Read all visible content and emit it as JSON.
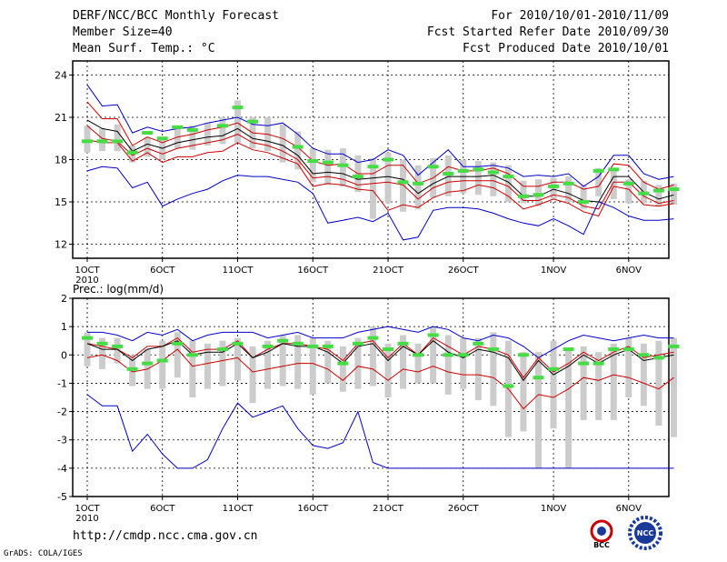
{
  "header": {
    "title": "DERF/NCC/BCC Monthly Forecast",
    "member_size": "Member Size=40",
    "variable": "Mean Surf. Temp.: °C",
    "period": "For 2010/10/01-2010/11/09",
    "started": "Fcst Started Refer Date 2010/09/30",
    "produced": "Fcst Produced Date 2010/10/01"
  },
  "footer": {
    "url": "http://cmdp.ncc.cma.gov.cn",
    "credit": "GrADS: COLA/IGES",
    "logo_bcc": "BCC",
    "logo_ncc": "NCC"
  },
  "colors": {
    "max": "#0000cc",
    "pct": "#cc0000",
    "mean": "#000000",
    "ctrl": "#44dd44",
    "range": "#cccccc"
  },
  "chart_data": [
    {
      "type": "line",
      "title": "Mean Surf. Temp.: °C",
      "x_tick_labels": [
        "1OCT",
        "6OCT",
        "11OCT",
        "16OCT",
        "21OCT",
        "26OCT",
        "1NOV",
        "6NOV"
      ],
      "x_year_label": "2010",
      "x_tick_days": [
        1,
        6,
        11,
        16,
        21,
        26,
        32,
        37
      ],
      "ylim": [
        11,
        25
      ],
      "yticks": [
        12,
        15,
        18,
        21,
        24
      ],
      "days": [
        1,
        2,
        3,
        4,
        5,
        6,
        7,
        8,
        9,
        10,
        11,
        12,
        13,
        14,
        15,
        16,
        17,
        18,
        19,
        20,
        21,
        22,
        23,
        24,
        25,
        26,
        27,
        28,
        29,
        30,
        31,
        32,
        33,
        34,
        35,
        36,
        37,
        38,
        39,
        40
      ],
      "series": [
        {
          "name": "max",
          "values": [
            23.3,
            21.8,
            21.9,
            19.9,
            20.3,
            20.0,
            20.2,
            20.3,
            20.6,
            20.8,
            21.0,
            20.5,
            20.4,
            20.6,
            19.8,
            18.8,
            18.4,
            18.4,
            17.8,
            18.0,
            18.7,
            18.3,
            16.9,
            17.8,
            18.7,
            17.5,
            17.5,
            17.6,
            17.4,
            16.8,
            16.9,
            16.8,
            17.0,
            16.1,
            16.8,
            18.3,
            18.3,
            17.0,
            16.6,
            16.8
          ]
        },
        {
          "name": "p_upper",
          "values": [
            22.1,
            20.9,
            20.9,
            19.0,
            19.6,
            19.2,
            19.6,
            19.8,
            20.1,
            20.3,
            20.6,
            19.9,
            19.8,
            19.5,
            18.9,
            17.9,
            17.6,
            17.7,
            17.0,
            17.0,
            17.6,
            17.6,
            16.3,
            16.7,
            17.5,
            17.2,
            17.2,
            17.4,
            17.0,
            16.1,
            16.1,
            16.4,
            16.4,
            15.9,
            16.1,
            17.7,
            17.6,
            16.4,
            15.9,
            16.2
          ]
        },
        {
          "name": "mean",
          "values": [
            20.8,
            20.2,
            20.0,
            18.6,
            19.1,
            18.8,
            19.2,
            19.4,
            19.6,
            19.7,
            20.2,
            19.5,
            19.3,
            19.0,
            18.3,
            17.0,
            17.1,
            17.0,
            16.6,
            16.7,
            16.8,
            16.6,
            15.6,
            16.3,
            16.8,
            16.8,
            16.8,
            16.9,
            16.4,
            15.4,
            15.4,
            15.9,
            15.6,
            15.1,
            15.0,
            16.8,
            16.8,
            15.7,
            15.2,
            15.5
          ]
        },
        {
          "name": "p_lower",
          "values": [
            20.4,
            19.5,
            19.3,
            18.3,
            18.8,
            18.4,
            18.8,
            19.0,
            19.2,
            19.4,
            19.8,
            19.2,
            19.0,
            18.6,
            18.0,
            16.7,
            16.8,
            16.6,
            16.2,
            16.3,
            16.4,
            16.2,
            15.2,
            16.0,
            16.4,
            16.5,
            16.5,
            16.5,
            16.1,
            15.1,
            15.1,
            15.5,
            15.3,
            14.7,
            14.5,
            16.4,
            16.4,
            15.4,
            14.9,
            15.1
          ]
        },
        {
          "name": "p_lowest",
          "values": [
            19.4,
            19.2,
            19.2,
            17.9,
            18.5,
            17.8,
            18.2,
            18.2,
            18.5,
            18.6,
            19.2,
            18.7,
            18.5,
            18.1,
            17.7,
            16.1,
            16.3,
            16.2,
            15.9,
            15.8,
            14.4,
            14.8,
            14.6,
            15.3,
            15.7,
            15.8,
            16.2,
            16.0,
            15.4,
            14.5,
            14.8,
            15.2,
            14.9,
            14.3,
            14.0,
            16.1,
            15.9,
            14.8,
            14.7,
            14.9
          ]
        },
        {
          "name": "min",
          "values": [
            17.2,
            17.5,
            17.4,
            16.0,
            16.4,
            14.7,
            15.2,
            15.6,
            15.9,
            16.5,
            16.9,
            16.8,
            16.8,
            16.6,
            16.4,
            15.6,
            13.5,
            13.7,
            13.9,
            13.6,
            14.2,
            12.3,
            12.5,
            14.4,
            14.6,
            14.6,
            14.5,
            14.2,
            13.8,
            13.5,
            13.3,
            13.8,
            13.3,
            12.7,
            15.0,
            14.6,
            14.0,
            13.7,
            13.7,
            13.8
          ]
        }
      ],
      "control": [
        19.3,
        19.3,
        19.3,
        18.5,
        19.9,
        19.5,
        20.3,
        20.1,
        null,
        20.4,
        21.7,
        20.7,
        null,
        null,
        18.9,
        17.9,
        17.8,
        17.6,
        16.8,
        17.5,
        18.0,
        16.4,
        16.3,
        17.5,
        17.0,
        17.2,
        17.3,
        17.1,
        16.8,
        15.4,
        15.5,
        16.1,
        16.3,
        15.0,
        17.2,
        17.3,
        16.3,
        15.6,
        15.8,
        15.9
      ],
      "range_bars": [
        [
          18.5,
          20.4
        ],
        [
          18.6,
          20.2
        ],
        [
          18.6,
          20.5
        ],
        [
          17.8,
          19.0
        ],
        [
          18.2,
          19.6
        ],
        [
          18.0,
          19.4
        ],
        [
          18.8,
          20.3
        ],
        [
          18.7,
          20.4
        ],
        [
          19.0,
          20.6
        ],
        [
          19.1,
          21.0
        ],
        [
          19.2,
          22.2
        ],
        [
          18.8,
          21.0
        ],
        [
          18.6,
          21.0
        ],
        [
          17.8,
          20.5
        ],
        [
          17.3,
          20.0
        ],
        [
          16.4,
          18.8
        ],
        [
          16.2,
          18.7
        ],
        [
          16.1,
          18.8
        ],
        [
          15.7,
          18.3
        ],
        [
          13.8,
          18.1
        ],
        [
          14.9,
          18.5
        ],
        [
          14.3,
          18.0
        ],
        [
          14.5,
          17.6
        ],
        [
          15.3,
          18.1
        ],
        [
          15.4,
          18.3
        ],
        [
          15.6,
          18.0
        ],
        [
          15.5,
          17.9
        ],
        [
          15.4,
          17.8
        ],
        [
          15.0,
          17.6
        ],
        [
          14.9,
          16.5
        ],
        [
          14.7,
          16.6
        ],
        [
          15.2,
          16.7
        ],
        [
          15.0,
          16.8
        ],
        [
          14.5,
          16.2
        ],
        [
          15.4,
          17.4
        ],
        [
          15.2,
          17.2
        ],
        [
          14.9,
          16.6
        ],
        [
          14.9,
          16.5
        ],
        [
          14.7,
          16.2
        ],
        [
          14.8,
          16.3
        ]
      ]
    },
    {
      "type": "line",
      "title": "Prec.: log(mm/d)",
      "x_tick_labels": [
        "1OCT",
        "6OCT",
        "11OCT",
        "16OCT",
        "21OCT",
        "26OCT",
        "1NOV",
        "6NOV"
      ],
      "x_year_label": "2010",
      "x_tick_days": [
        1,
        6,
        11,
        16,
        21,
        26,
        32,
        37
      ],
      "ylim": [
        -5,
        2
      ],
      "yticks": [
        -5,
        -4,
        -3,
        -2,
        -1,
        0,
        1,
        2
      ],
      "days": [
        1,
        2,
        3,
        4,
        5,
        6,
        7,
        8,
        9,
        10,
        11,
        12,
        13,
        14,
        15,
        16,
        17,
        18,
        19,
        20,
        21,
        22,
        23,
        24,
        25,
        26,
        27,
        28,
        29,
        30,
        31,
        32,
        33,
        34,
        35,
        36,
        37,
        38,
        39,
        40
      ],
      "series": [
        {
          "name": "max",
          "values": [
            0.8,
            0.8,
            0.7,
            0.5,
            0.8,
            0.7,
            0.9,
            0.5,
            0.7,
            0.8,
            0.8,
            0.8,
            0.6,
            0.7,
            0.8,
            0.6,
            0.6,
            0.6,
            0.8,
            0.9,
            1.0,
            0.9,
            0.8,
            1.0,
            0.9,
            0.6,
            0.5,
            0.7,
            0.6,
            0.3,
            -0.1,
            0.2,
            0.5,
            0.7,
            0.6,
            0.5,
            0.6,
            0.7,
            0.6,
            0.6
          ]
        },
        {
          "name": "p_upper",
          "values": [
            0.4,
            0.3,
            0.2,
            -0.1,
            0.3,
            0.3,
            0.6,
            0.1,
            0.2,
            0.2,
            0.5,
            -0.1,
            0.2,
            0.4,
            0.4,
            0.3,
            0.2,
            -0.2,
            0.4,
            0.5,
            -0.1,
            0.4,
            0.0,
            0.6,
            0.3,
            0.0,
            0.3,
            0.2,
            0.0,
            -0.8,
            -0.1,
            -0.6,
            -0.3,
            0.1,
            -0.2,
            0.1,
            0.3,
            -0.1,
            0.0,
            0.1
          ]
        },
        {
          "name": "mean",
          "values": [
            0.4,
            0.2,
            0.2,
            -0.2,
            0.2,
            0.3,
            0.5,
            0.0,
            0.1,
            0.1,
            0.4,
            -0.1,
            0.1,
            0.4,
            0.3,
            0.3,
            0.1,
            -0.3,
            0.3,
            0.4,
            -0.2,
            0.3,
            0.0,
            0.5,
            0.1,
            -0.1,
            0.2,
            0.1,
            -0.1,
            -0.9,
            -0.2,
            -0.7,
            -0.4,
            0.0,
            -0.3,
            0.0,
            0.2,
            -0.2,
            -0.1,
            0.0
          ]
        },
        {
          "name": "p_lowest",
          "values": [
            -0.1,
            0.0,
            -0.2,
            -0.6,
            -0.5,
            -0.2,
            0.2,
            -0.4,
            -0.3,
            -0.2,
            -0.1,
            -0.6,
            -0.5,
            -0.4,
            -0.3,
            -0.3,
            -0.5,
            -0.9,
            -0.4,
            -0.5,
            -0.9,
            -0.5,
            -0.6,
            -0.4,
            -0.6,
            -0.7,
            -0.7,
            -0.8,
            -1.2,
            -1.9,
            -1.4,
            -1.5,
            -1.2,
            -0.8,
            -0.9,
            -0.7,
            -0.8,
            -1.0,
            -1.2,
            -0.8
          ]
        },
        {
          "name": "min",
          "values": [
            -1.4,
            -1.8,
            -1.8,
            -3.4,
            -2.8,
            -3.5,
            -4.0,
            -4.0,
            -3.7,
            -2.6,
            -1.7,
            -2.2,
            -2.0,
            -1.8,
            -2.6,
            -3.2,
            -3.3,
            -3.1,
            -2.0,
            -3.8,
            -4.0,
            -4.0,
            -4.0,
            -4.0,
            -4.0,
            -4.0,
            -4.0,
            -4.0,
            -4.0,
            -4.0,
            -4.0,
            -4.0,
            -4.0,
            -4.0,
            -4.0,
            -4.0,
            -4.0,
            -4.0,
            -4.0,
            -4.0
          ]
        }
      ],
      "control": [
        0.6,
        0.4,
        0.3,
        -0.5,
        -0.3,
        -0.2,
        0.4,
        0.0,
        null,
        0.2,
        0.4,
        null,
        0.3,
        0.5,
        0.4,
        0.3,
        0.3,
        -0.3,
        0.4,
        0.6,
        0.2,
        0.4,
        0.0,
        0.7,
        0.0,
        0.0,
        0.4,
        0.2,
        -1.1,
        0.0,
        -0.8,
        -0.5,
        0.2,
        -0.3,
        -0.3,
        0.2,
        0.2,
        0.0,
        -0.1,
        0.3
      ],
      "range_bars": [
        [
          -0.4,
          0.8
        ],
        [
          -0.5,
          0.6
        ],
        [
          -0.3,
          0.6
        ],
        [
          -1.1,
          0.0
        ],
        [
          -1.2,
          0.2
        ],
        [
          -1.2,
          0.5
        ],
        [
          -0.8,
          0.8
        ],
        [
          -1.5,
          0.5
        ],
        [
          -1.2,
          0.4
        ],
        [
          -1.1,
          0.5
        ],
        [
          -0.9,
          0.6
        ],
        [
          -1.7,
          0.3
        ],
        [
          -1.2,
          0.5
        ],
        [
          -1.1,
          0.7
        ],
        [
          -1.2,
          0.7
        ],
        [
          -1.4,
          0.6
        ],
        [
          -1.0,
          0.5
        ],
        [
          -1.3,
          0.3
        ],
        [
          -1.2,
          0.6
        ],
        [
          -1.1,
          1.0
        ],
        [
          -1.5,
          0.4
        ],
        [
          -1.2,
          0.7
        ],
        [
          -1.0,
          0.4
        ],
        [
          -1.0,
          1.0
        ],
        [
          -1.4,
          0.7
        ],
        [
          -1.2,
          0.6
        ],
        [
          -1.6,
          0.6
        ],
        [
          -1.8,
          0.8
        ],
        [
          -2.9,
          0.5
        ],
        [
          -2.7,
          0.1
        ],
        [
          -4.0,
          0.1
        ],
        [
          -2.6,
          0.5
        ],
        [
          -4.0,
          0.2
        ],
        [
          -2.3,
          0.3
        ],
        [
          -2.3,
          0.1
        ],
        [
          -2.3,
          0.4
        ],
        [
          -1.5,
          0.6
        ],
        [
          -1.8,
          0.4
        ],
        [
          -2.5,
          0.5
        ],
        [
          -2.9,
          0.6
        ]
      ]
    }
  ]
}
